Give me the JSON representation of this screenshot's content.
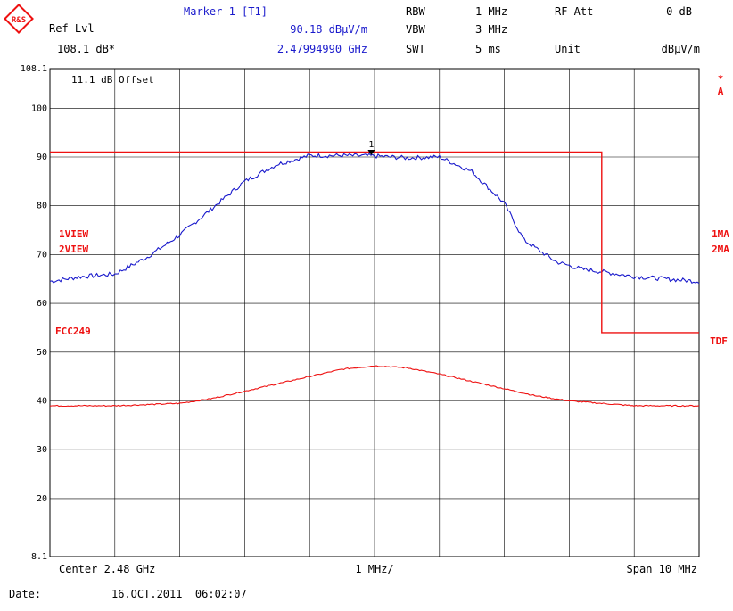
{
  "header": {
    "logo_text": "R&S",
    "ref_lvl_label": "Ref Lvl",
    "ref_lvl_value": "108.1 dB*",
    "marker_title": "Marker 1 [T1]",
    "marker_level": "90.18 dBµV/m",
    "marker_freq": "2.47994990 GHz",
    "rbw_label": "RBW",
    "rbw_value": "1 MHz",
    "vbw_label": "VBW",
    "vbw_value": "3 MHz",
    "swt_label": "SWT",
    "swt_value": "5 ms",
    "rf_att_label": "RF Att",
    "rf_att_value": "0 dB",
    "unit_label": "Unit",
    "unit_value": "dBµV/m"
  },
  "plot": {
    "offset_note": "11.1 dB Offset",
    "trace1_label": "1VIEW",
    "trace2_label": "2VIEW",
    "limit_label": "FCC249",
    "right_a": "A",
    "right_star": "*",
    "right_1ma": "1MA",
    "right_2ma": "2MA",
    "right_tdf": "TDF",
    "marker_number": "1"
  },
  "footer": {
    "center": "Center 2.48 GHz",
    "div": "1 MHz/",
    "span": "Span 10 MHz",
    "date_label": "Date:",
    "date_value": "16.OCT.2011  06:02:07"
  },
  "colors": {
    "trace": "#1a1acc",
    "limit": "#ee1111",
    "header_blue": "#1a1acc",
    "grid": "#000000"
  },
  "chart_data": {
    "type": "line",
    "title": "",
    "xlabel": "",
    "ylabel": "",
    "x_unit": "MHz",
    "xlim": [
      2475,
      2485
    ],
    "ylim": [
      8.1,
      108.1
    ],
    "y_tick_labels": [
      "108.1",
      "100",
      "90",
      "80",
      "70",
      "60",
      "50",
      "40",
      "30",
      "20",
      "8.1"
    ],
    "y_tick_values": [
      108.1,
      100,
      90,
      80,
      70,
      60,
      50,
      40,
      30,
      20,
      8.1
    ],
    "grid": true,
    "series": [
      {
        "name": "",
        "role": "trace1",
        "color": "#1a1acc",
        "x": [
          2475.0,
          2475.5,
          2476.0,
          2476.5,
          2477.0,
          2477.5,
          2478.0,
          2478.5,
          2479.0,
          2479.5,
          2480.0,
          2480.5,
          2481.0,
          2481.5,
          2482.0,
          2482.3,
          2482.8,
          2483.2,
          2483.5,
          2484.0,
          2484.5,
          2485.0
        ],
        "values": [
          64.5,
          65.5,
          66.0,
          69.5,
          74.0,
          79.5,
          85.0,
          88.5,
          90.3,
          90.3,
          90.2,
          89.8,
          90.0,
          87.0,
          80.5,
          73.0,
          68.5,
          67.0,
          66.5,
          65.5,
          65.0,
          64.5
        ]
      },
      {
        "name": "",
        "role": "trace2",
        "color": "#ee1111",
        "x": [
          2475.0,
          2476.0,
          2477.0,
          2477.5,
          2478.0,
          2478.5,
          2479.0,
          2479.5,
          2480.0,
          2480.5,
          2481.0,
          2481.5,
          2482.0,
          2482.5,
          2483.0,
          2484.0,
          2485.0
        ],
        "values": [
          39.0,
          39.0,
          39.5,
          40.5,
          42.0,
          43.5,
          45.0,
          46.5,
          47.2,
          46.8,
          45.5,
          44.0,
          42.5,
          41.0,
          40.0,
          39.0,
          39.0
        ]
      },
      {
        "name": "",
        "role": "limit",
        "color": "#ee1111",
        "x": [
          2475.0,
          2483.5,
          2483.5,
          2485.0
        ],
        "values": [
          91.0,
          91.0,
          54.0,
          54.0
        ]
      }
    ],
    "marker": {
      "label": "1",
      "x": 2479.95,
      "y": 90.18
    }
  }
}
